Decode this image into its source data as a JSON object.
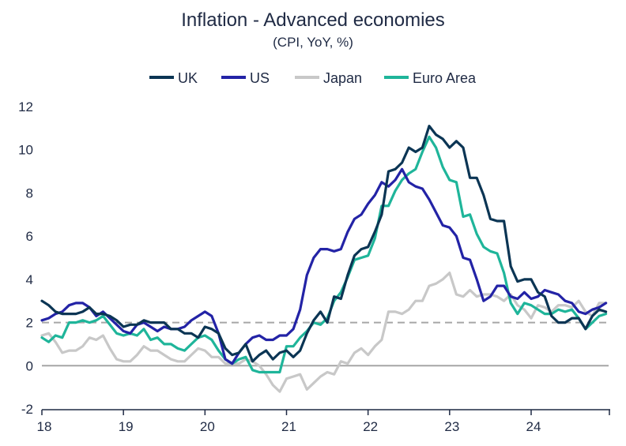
{
  "chart_data": {
    "type": "line",
    "title": "Inflation - Advanced economies",
    "subtitle": "(CPI, YoY, %)",
    "xlabel": "",
    "ylabel": "",
    "ylim": [
      -2,
      12
    ],
    "yticks": [
      -2,
      0,
      2,
      4,
      6,
      8,
      10,
      12
    ],
    "xlim": [
      2018.0,
      2024.95
    ],
    "xticks": [
      {
        "value": 2018,
        "label": "18"
      },
      {
        "value": 2019,
        "label": "19"
      },
      {
        "value": 2020,
        "label": "20"
      },
      {
        "value": 2021,
        "label": "21"
      },
      {
        "value": 2022,
        "label": "22"
      },
      {
        "value": 2023,
        "label": "23"
      },
      {
        "value": 2024,
        "label": "24"
      }
    ],
    "legend_position": "top",
    "reference_lines": [
      {
        "y": 2,
        "style": "dashed",
        "color": "#a6a6a6"
      },
      {
        "y": 0,
        "style": "solid",
        "color": "#a6a6a6"
      }
    ],
    "series": [
      {
        "name": "UK",
        "color": "#0b3554",
        "values": [
          3.0,
          2.8,
          2.5,
          2.4,
          2.4,
          2.4,
          2.5,
          2.7,
          2.4,
          2.4,
          2.3,
          2.1,
          1.8,
          1.9,
          1.9,
          2.1,
          2.0,
          2.0,
          2.0,
          1.7,
          1.7,
          1.5,
          1.5,
          1.3,
          1.8,
          1.7,
          1.5,
          0.8,
          0.5,
          0.6,
          1.0,
          0.2,
          0.5,
          0.7,
          0.3,
          0.6,
          0.7,
          0.4,
          0.7,
          1.5,
          2.1,
          2.5,
          2.0,
          3.2,
          3.1,
          4.2,
          5.1,
          5.4,
          5.5,
          6.2,
          7.0,
          9.0,
          9.1,
          9.4,
          10.1,
          9.9,
          10.1,
          11.1,
          10.7,
          10.5,
          10.1,
          10.4,
          10.1,
          8.7,
          8.7,
          7.9,
          6.8,
          6.7,
          6.7,
          4.6,
          3.9,
          4.0,
          4.0,
          3.4,
          3.2,
          2.3,
          2.0,
          2.0,
          2.2,
          2.2,
          1.7,
          2.3,
          2.6,
          2.5
        ]
      },
      {
        "name": "US",
        "color": "#2323a6",
        "values": [
          2.1,
          2.2,
          2.4,
          2.5,
          2.8,
          2.9,
          2.9,
          2.7,
          2.3,
          2.5,
          2.2,
          1.9,
          1.6,
          1.5,
          1.9,
          2.0,
          1.8,
          1.6,
          1.8,
          1.7,
          1.7,
          1.8,
          2.1,
          2.3,
          2.5,
          2.3,
          1.5,
          0.3,
          0.1,
          0.6,
          1.0,
          1.3,
          1.4,
          1.2,
          1.2,
          1.4,
          1.4,
          1.7,
          2.6,
          4.2,
          5.0,
          5.4,
          5.4,
          5.3,
          5.4,
          6.2,
          6.8,
          7.0,
          7.5,
          7.9,
          8.5,
          8.3,
          8.6,
          9.1,
          8.5,
          8.3,
          8.2,
          7.7,
          7.1,
          6.5,
          6.4,
          6.0,
          5.0,
          4.9,
          4.0,
          3.0,
          3.2,
          3.7,
          3.7,
          3.2,
          3.1,
          3.4,
          3.1,
          3.2,
          3.5,
          3.4,
          3.3,
          3.0,
          2.9,
          2.5,
          2.4,
          2.6,
          2.7,
          2.9
        ]
      },
      {
        "name": "Japan",
        "color": "#c8c8c8",
        "values": [
          1.4,
          1.5,
          1.1,
          0.6,
          0.7,
          0.7,
          0.9,
          1.3,
          1.2,
          1.4,
          0.8,
          0.3,
          0.2,
          0.2,
          0.5,
          0.9,
          0.7,
          0.7,
          0.5,
          0.3,
          0.2,
          0.2,
          0.5,
          0.8,
          0.7,
          0.4,
          0.4,
          0.1,
          0.1,
          0.1,
          0.3,
          0.2,
          0.0,
          -0.4,
          -0.9,
          -1.2,
          -0.6,
          -0.5,
          -0.4,
          -1.1,
          -0.8,
          -0.5,
          -0.3,
          -0.4,
          0.2,
          0.1,
          0.6,
          0.8,
          0.5,
          0.9,
          1.2,
          2.5,
          2.5,
          2.4,
          2.6,
          3.0,
          3.0,
          3.7,
          3.8,
          4.0,
          4.3,
          3.3,
          3.2,
          3.5,
          3.2,
          3.3,
          3.3,
          3.2,
          3.0,
          3.3,
          2.8,
          2.6,
          2.2,
          2.8,
          2.7,
          2.5,
          2.8,
          2.8,
          2.7,
          3.0,
          2.5,
          2.3,
          2.9,
          2.9
        ]
      },
      {
        "name": "Euro Area",
        "color": "#1fb59a",
        "values": [
          1.3,
          1.1,
          1.4,
          1.3,
          2.0,
          2.0,
          2.1,
          2.0,
          2.1,
          2.3,
          1.9,
          1.5,
          1.4,
          1.5,
          1.4,
          1.7,
          1.2,
          1.3,
          1.0,
          1.0,
          0.8,
          0.7,
          1.0,
          1.3,
          1.4,
          1.2,
          0.7,
          0.3,
          0.1,
          0.3,
          0.4,
          -0.2,
          -0.3,
          -0.3,
          -0.3,
          -0.3,
          0.9,
          0.9,
          1.3,
          1.6,
          2.0,
          1.9,
          2.2,
          3.0,
          3.4,
          4.1,
          4.9,
          5.0,
          5.1,
          5.9,
          7.4,
          7.4,
          8.1,
          8.6,
          8.9,
          9.1,
          9.9,
          10.6,
          10.1,
          9.2,
          8.6,
          8.5,
          6.9,
          7.0,
          6.1,
          5.5,
          5.3,
          5.2,
          4.3,
          2.9,
          2.4,
          2.9,
          2.8,
          2.6,
          2.4,
          2.4,
          2.6,
          2.5,
          2.6,
          2.2,
          1.7,
          2.0,
          2.3,
          2.4
        ]
      }
    ]
  }
}
